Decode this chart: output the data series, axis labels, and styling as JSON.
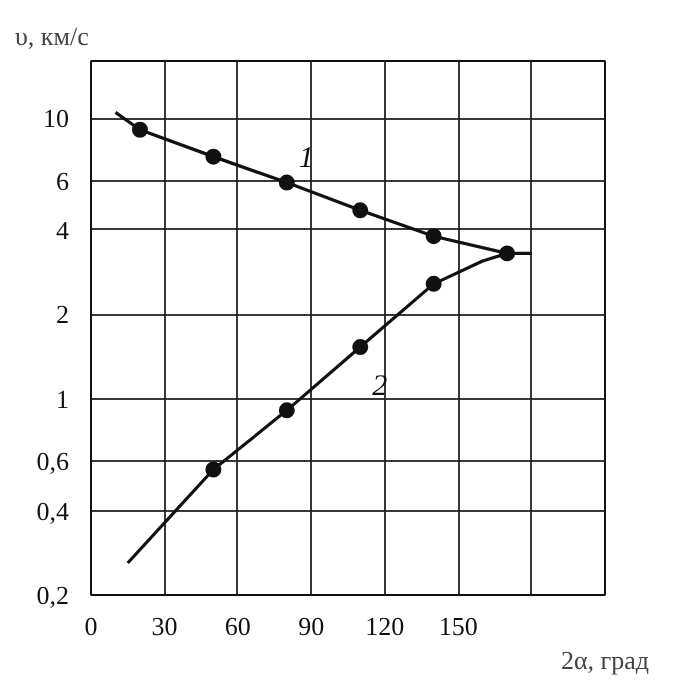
{
  "chart_data": {
    "type": "line",
    "xlabel": "2α, град",
    "ylabel": "υ, км/с",
    "log": "y",
    "grid": true,
    "marker": "circle",
    "line_style": "solid",
    "xlim": [
      0,
      210
    ],
    "xticks": [
      0,
      30,
      60,
      90,
      120,
      150,
      {
        "value": 180,
        "label": null
      }
    ],
    "ylim": [
      0.2,
      16
    ],
    "yticks": [
      {
        "value": 0.2,
        "label": "0,2"
      },
      {
        "value": 0.4,
        "label": "0,4"
      },
      {
        "value": 0.6,
        "label": "0,6"
      },
      1,
      2,
      4,
      6,
      10,
      {
        "value": 16,
        "label": null
      }
    ],
    "series": [
      {
        "name": "1",
        "marker": "none",
        "color": "#111111",
        "x": [
          10,
          20,
          50,
          80,
          110,
          140,
          170,
          180
        ],
        "values": [
          10.5,
          9.1,
          7.3,
          5.9,
          4.7,
          3.8,
          3.3,
          3.3
        ]
      },
      {
        "name": "2",
        "marker": "none",
        "color": "#111111",
        "x": [
          15,
          50,
          80,
          110,
          140,
          160,
          170
        ],
        "values": [
          0.26,
          0.56,
          0.91,
          1.53,
          2.57,
          3.1,
          3.3
        ]
      },
      {
        "type": "scatter",
        "color": "#111111",
        "x": [
          20,
          50,
          80,
          110,
          140,
          170
        ],
        "values": [
          9.1,
          7.3,
          5.9,
          4.7,
          3.8,
          3.3
        ]
      },
      {
        "type": "scatter",
        "color": "#111111",
        "x": [
          50,
          80,
          110,
          140
        ],
        "values": [
          0.56,
          0.91,
          1.53,
          2.57
        ]
      }
    ]
  }
}
